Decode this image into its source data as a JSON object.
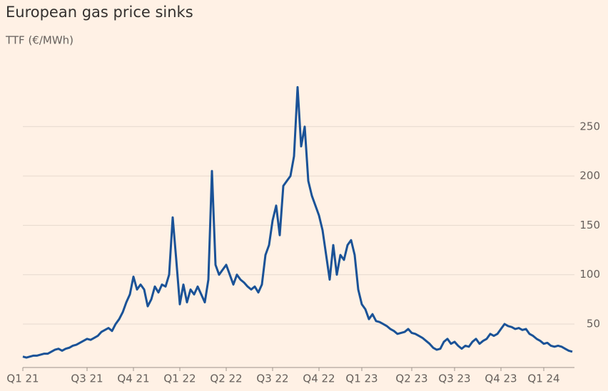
{
  "chart_data": {
    "type": "line",
    "title": "European gas price sinks",
    "subtitle": "TTF (€/MWh)",
    "categories": [
      "Q1 21",
      null,
      null,
      null,
      null,
      null,
      null,
      null,
      null,
      null,
      null,
      null,
      null,
      null,
      null,
      null,
      null,
      null,
      "Q3 21",
      null,
      null,
      null,
      null,
      null,
      null,
      null,
      null,
      null,
      null,
      null,
      null,
      "Q4 21",
      null,
      null,
      null,
      null,
      null,
      null,
      null,
      null,
      null,
      null,
      null,
      null,
      "Q1 22",
      null,
      null,
      null,
      null,
      null,
      null,
      null,
      null,
      null,
      null,
      null,
      null,
      "Q2 22",
      null,
      null,
      null,
      null,
      null,
      null,
      null,
      null,
      null,
      null,
      null,
      null,
      "Q3 22",
      null,
      null,
      null,
      null,
      null,
      null,
      null,
      null,
      null,
      null,
      null,
      null,
      "Q4 22",
      null,
      null,
      null,
      null,
      null,
      null,
      null,
      null,
      null,
      null,
      null,
      "Q1 23",
      null,
      null,
      null,
      null,
      null,
      null,
      null,
      null,
      null,
      null,
      null,
      null,
      null,
      "Q2 23",
      null,
      null,
      null,
      null,
      null,
      null,
      null,
      null,
      null,
      null,
      null,
      "Q3 23",
      null,
      null,
      null,
      null,
      null,
      null,
      null,
      null,
      null,
      null,
      null,
      null,
      "Q4 23",
      null,
      null,
      null,
      null,
      null,
      null,
      null,
      null,
      null,
      null,
      null,
      "Q1 24",
      null,
      null,
      null,
      null,
      null,
      null,
      null,
      null
    ],
    "series": [
      {
        "name": "TTF",
        "color": "#1a5297",
        "values": [
          17,
          16,
          17,
          18,
          18,
          19,
          20,
          20,
          22,
          24,
          25,
          23,
          25,
          26,
          28,
          29,
          31,
          33,
          35,
          34,
          36,
          38,
          42,
          44,
          46,
          43,
          50,
          55,
          62,
          72,
          80,
          98,
          85,
          90,
          85,
          68,
          75,
          88,
          82,
          90,
          88,
          100,
          158,
          115,
          70,
          90,
          72,
          85,
          80,
          88,
          80,
          72,
          95,
          205,
          110,
          100,
          105,
          110,
          100,
          90,
          100,
          95,
          92,
          88,
          85,
          88,
          82,
          90,
          120,
          130,
          155,
          170,
          140,
          190,
          195,
          200,
          220,
          290,
          230,
          250,
          195,
          180,
          170,
          160,
          145,
          120,
          95,
          130,
          100,
          120,
          115,
          130,
          135,
          120,
          85,
          70,
          65,
          55,
          60,
          53,
          52,
          50,
          48,
          45,
          43,
          40,
          41,
          42,
          45,
          41,
          40,
          38,
          36,
          33,
          30,
          26,
          24,
          25,
          32,
          35,
          30,
          32,
          28,
          25,
          28,
          27,
          32,
          35,
          30,
          33,
          35,
          40,
          38,
          40,
          45,
          50,
          48,
          47,
          45,
          46,
          44,
          45,
          40,
          38,
          35,
          33,
          30,
          31,
          28,
          27,
          28,
          27,
          25,
          23,
          22
        ]
      }
    ],
    "ylim": [
      8,
      300
    ],
    "yticks": [
      50,
      100,
      150,
      200,
      250
    ],
    "grid": true
  }
}
